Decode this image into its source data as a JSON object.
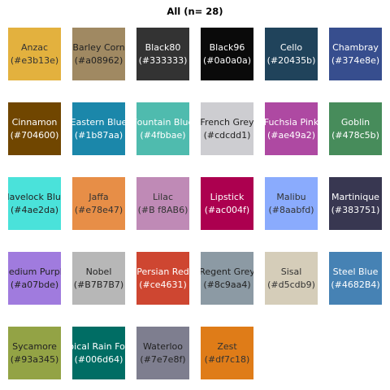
{
  "title": "All (n= 28)",
  "chart_data": {
    "type": "table",
    "title": "All (n= 28)",
    "columns": 6,
    "swatches": [
      {
        "name": "Anzac",
        "code": "(#e3b13e)",
        "color": "#e3b13e",
        "text_color": "#333333"
      },
      {
        "name": "Barley Corn",
        "code": "(#a08962)",
        "color": "#a08962",
        "text_color": "#222222"
      },
      {
        "name": "Black80",
        "code": "(#333333)",
        "color": "#333333",
        "text_color": "#ffffff"
      },
      {
        "name": "Black96",
        "code": "(#0a0a0a)",
        "color": "#0a0a0a",
        "text_color": "#ffffff"
      },
      {
        "name": "Cello",
        "code": "(#20435b)",
        "color": "#20435b",
        "text_color": "#ffffff"
      },
      {
        "name": "Chambray",
        "code": "(#374e8e)",
        "color": "#374e8e",
        "text_color": "#ffffff"
      },
      {
        "name": "Cinnamon",
        "code": "(#704600)",
        "color": "#704600",
        "text_color": "#ffffff"
      },
      {
        "name": "Eastern Blue",
        "code": "(#1b87aa)",
        "color": "#1b87aa",
        "text_color": "#ffffff"
      },
      {
        "name": "Fountain Blue",
        "code": "(#4fbbae)",
        "color": "#4fbbae",
        "text_color": "#ffffff"
      },
      {
        "name": "French Grey",
        "code": "(#cdcdd1)",
        "color": "#cdcdd1",
        "text_color": "#222222"
      },
      {
        "name": "Fuchsia Pink",
        "code": "(#ae49a2)",
        "color": "#ae49a2",
        "text_color": "#ffffff"
      },
      {
        "name": "Goblin",
        "code": "(#478c5b)",
        "color": "#478c5b",
        "text_color": "#ffffff"
      },
      {
        "name": "Havelock Blue",
        "code": "(#4ae2da)",
        "color": "#4ae2da",
        "text_color": "#222222"
      },
      {
        "name": "Jaffa",
        "code": "(#e78e47)",
        "color": "#e78e47",
        "text_color": "#333333"
      },
      {
        "name": "Lilac",
        "code": "(#B f8AB6)",
        "color": "#bf8ab6",
        "text_color": "#333333"
      },
      {
        "name": "Lipstick",
        "code": "(#ac004f)",
        "color": "#ac004f",
        "text_color": "#ffffff"
      },
      {
        "name": "Malibu",
        "code": "(#8aabfd)",
        "color": "#8aabfd",
        "text_color": "#333333"
      },
      {
        "name": "Martinique",
        "code": "(#383751)",
        "color": "#383751",
        "text_color": "#ffffff"
      },
      {
        "name": "Medium Purple",
        "code": "(#a07bde)",
        "color": "#a07bde",
        "text_color": "#222222"
      },
      {
        "name": "Nobel",
        "code": "(#B7B7B7)",
        "color": "#b7b7b7",
        "text_color": "#222222"
      },
      {
        "name": "Persian Red",
        "code": "(#ce4631)",
        "color": "#ce4631",
        "text_color": "#ffffff"
      },
      {
        "name": "Regent Grey",
        "code": "(#8c9aa4)",
        "color": "#8c9aa4",
        "text_color": "#222222"
      },
      {
        "name": "Sisal",
        "code": "(#d5cdb9)",
        "color": "#d5cdb9",
        "text_color": "#333333"
      },
      {
        "name": "Steel Blue",
        "code": "(#4682B4)",
        "color": "#4682b4",
        "text_color": "#ffffff"
      },
      {
        "name": "Sycamore",
        "code": "(#93a345)",
        "color": "#93a345",
        "text_color": "#222222"
      },
      {
        "name": "Tropical Rain Forest",
        "code": "(#006d64)",
        "color": "#006d64",
        "text_color": "#ffffff"
      },
      {
        "name": "Waterloo",
        "code": "(#7e7e8f)",
        "color": "#7e7e8f",
        "text_color": "#222222"
      },
      {
        "name": "Zest",
        "code": "(#df7c18)",
        "color": "#df7c18",
        "text_color": "#333333"
      }
    ]
  }
}
